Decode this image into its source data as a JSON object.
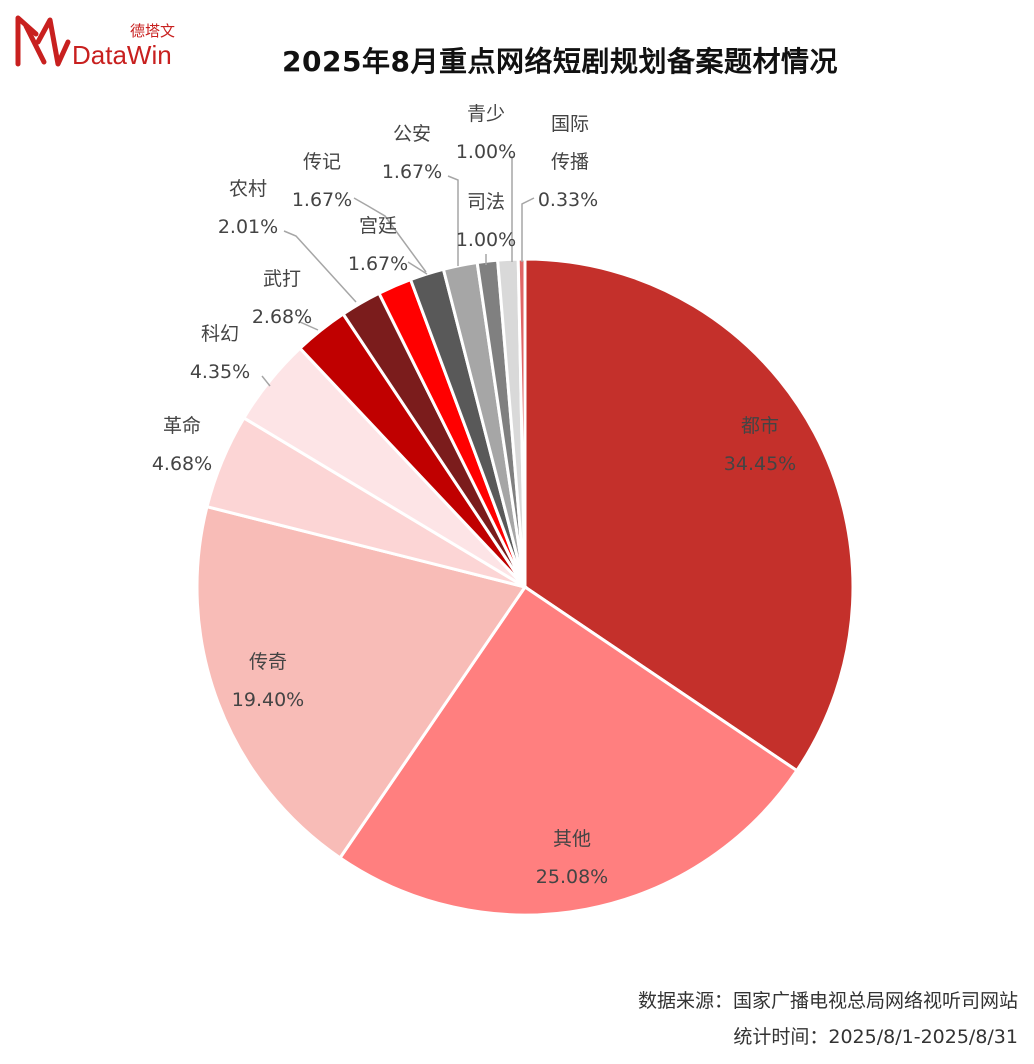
{
  "logo": {
    "brand_cn": "德塔文",
    "brand_en": "DataWin",
    "color": "#c8201f"
  },
  "title": "2025年8月重点网络短剧规划备案题材情况",
  "footer": {
    "source": "数据来源：国家广播电视总局网络视听司网站",
    "period": "统计时间：2025/8/1-2025/8/31"
  },
  "chart_data": {
    "type": "pie",
    "title": "2025年8月重点网络短剧规划备案题材情况",
    "start": "12 o'clock",
    "direction": "clockwise",
    "slices": [
      {
        "label": "都市",
        "value": 34.45,
        "display": "34.45%",
        "color": "#c4302b"
      },
      {
        "label": "其他",
        "value": 25.08,
        "display": "25.08%",
        "color": "#ff7f7f"
      },
      {
        "label": "传奇",
        "value": 19.4,
        "display": "19.40%",
        "color": "#f8bcb7"
      },
      {
        "label": "革命",
        "value": 4.68,
        "display": "4.68%",
        "color": "#fcd5d5"
      },
      {
        "label": "科幻",
        "value": 4.35,
        "display": "4.35%",
        "color": "#fde4e6"
      },
      {
        "label": "武打",
        "value": 2.68,
        "display": "2.68%",
        "color": "#c00000"
      },
      {
        "label": "农村",
        "value": 2.01,
        "display": "2.01%",
        "color": "#7b1c1c"
      },
      {
        "label": "传记",
        "value": 1.67,
        "display": "1.67%",
        "color": "#ff0000"
      },
      {
        "label": "宫廷",
        "value": 1.67,
        "display": "1.67%",
        "color": "#595959"
      },
      {
        "label": "公安",
        "value": 1.67,
        "display": "1.67%",
        "color": "#a6a6a6"
      },
      {
        "label": "司法",
        "value": 1.0,
        "display": "1.00%",
        "color": "#808080"
      },
      {
        "label": "青少",
        "value": 1.0,
        "display": "1.00%",
        "color": "#d9d9d9"
      },
      {
        "label": "国际传播",
        "value": 0.33,
        "display": "0.33%",
        "color": "#e06666"
      }
    ]
  }
}
